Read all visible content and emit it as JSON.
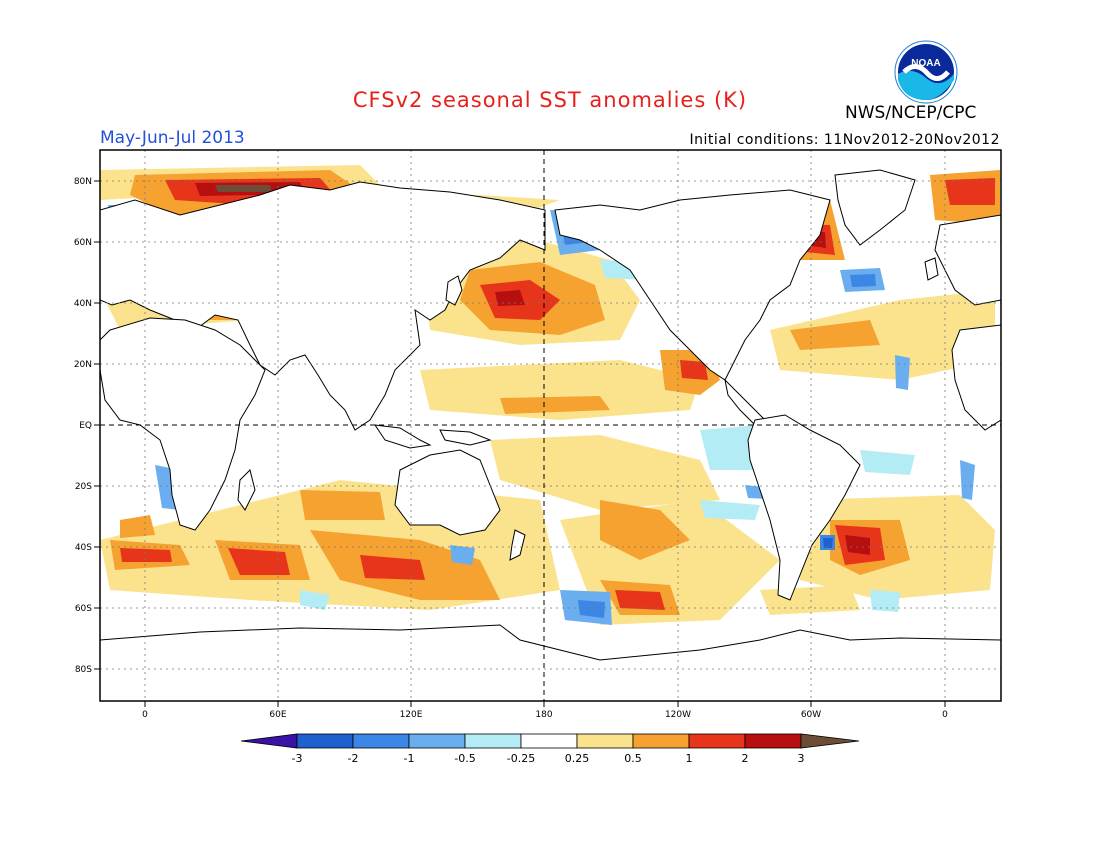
{
  "header": {
    "title": "CFSv2 seasonal SST anomalies (K)",
    "season": "May-Jun-Jul 2013",
    "agency": "NWS/NCEP/CPC",
    "initial_conditions": "Initial conditions: 11Nov2012-20Nov2012",
    "logo_text": "NOAA"
  },
  "map": {
    "projection": "equirectangular",
    "lat_ticks": [
      "80N",
      "60N",
      "40N",
      "20N",
      "EQ",
      "20S",
      "40S",
      "60S",
      "80S"
    ],
    "lon_ticks": [
      "0",
      "60E",
      "120E",
      "180",
      "120W",
      "60W",
      "0"
    ],
    "dashed_reference_lines": [
      "EQ",
      "180"
    ]
  },
  "colorbar": {
    "labels": [
      "-3",
      "-2",
      "-1",
      "-0.5",
      "-0.25",
      "0.25",
      "0.5",
      "1",
      "2",
      "3"
    ],
    "colors": [
      "#3a12a6",
      "#1f5fcf",
      "#3c86e6",
      "#6aaef0",
      "#b4ecf6",
      "#ffffff",
      "#fbe38e",
      "#f6a230",
      "#e6351a",
      "#b50f0f",
      "#6e4d38"
    ]
  }
}
